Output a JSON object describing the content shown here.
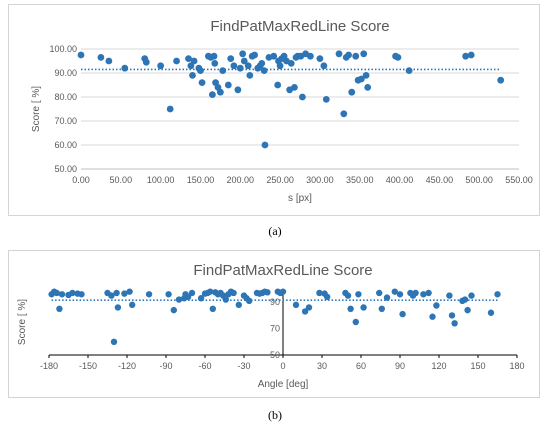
{
  "captions": {
    "a": "(a)",
    "b": "(b)"
  },
  "colors": {
    "series": "#2e75b6",
    "trend": "#2e75b6",
    "axis": "#bfbfbf",
    "grid": "#d9d9d9",
    "text": "#595959"
  },
  "chart_data": [
    {
      "type": "scatter",
      "title": "FindPatMaxRedLine Score",
      "xlabel": "s [px]",
      "ylabel": "Score [ %]",
      "xlim": [
        0,
        550
      ],
      "ylim": [
        50,
        100
      ],
      "xticks": [
        "0.00",
        "50.00",
        "100.00",
        "150.00",
        "200.00",
        "250.00",
        "300.00",
        "350.00",
        "400.00",
        "450.00",
        "500.00",
        "550.00"
      ],
      "yticks": [
        "50.00",
        "60.00",
        "70.00",
        "80.00",
        "90.00",
        "100.00"
      ],
      "grid": true,
      "trendline": 91.5,
      "points": [
        [
          0,
          97.5
        ],
        [
          25,
          96.5
        ],
        [
          35,
          95
        ],
        [
          55,
          92
        ],
        [
          80,
          96
        ],
        [
          82,
          94.5
        ],
        [
          100,
          93
        ],
        [
          112,
          75
        ],
        [
          120,
          95
        ],
        [
          135,
          96
        ],
        [
          138,
          93
        ],
        [
          140,
          89
        ],
        [
          142,
          95
        ],
        [
          148,
          92
        ],
        [
          150,
          91
        ],
        [
          152,
          86
        ],
        [
          160,
          97
        ],
        [
          163,
          96.5
        ],
        [
          165,
          81
        ],
        [
          167,
          97
        ],
        [
          168,
          94
        ],
        [
          169,
          86
        ],
        [
          172,
          84
        ],
        [
          175,
          82
        ],
        [
          178,
          91
        ],
        [
          185,
          85
        ],
        [
          188,
          96
        ],
        [
          192,
          93
        ],
        [
          197,
          83
        ],
        [
          200,
          92
        ],
        [
          203,
          98
        ],
        [
          205,
          95
        ],
        [
          210,
          93
        ],
        [
          212,
          89
        ],
        [
          215,
          97
        ],
        [
          218,
          97.5
        ],
        [
          222,
          92
        ],
        [
          225,
          93
        ],
        [
          227,
          94
        ],
        [
          230,
          91
        ],
        [
          231,
          60
        ],
        [
          236,
          96.5
        ],
        [
          242,
          97
        ],
        [
          247,
          85
        ],
        [
          248,
          95
        ],
        [
          250,
          93
        ],
        [
          252,
          96
        ],
        [
          255,
          97
        ],
        [
          258,
          95
        ],
        [
          262,
          83
        ],
        [
          264,
          94
        ],
        [
          268,
          84
        ],
        [
          270,
          96.5
        ],
        [
          272,
          97
        ],
        [
          276,
          97
        ],
        [
          278,
          80
        ],
        [
          282,
          98
        ],
        [
          288,
          97
        ],
        [
          300,
          96
        ],
        [
          305,
          93
        ],
        [
          308,
          79
        ],
        [
          324,
          98
        ],
        [
          330,
          73
        ],
        [
          333,
          96.5
        ],
        [
          336,
          97.5
        ],
        [
          340,
          82
        ],
        [
          345,
          97
        ],
        [
          348,
          87
        ],
        [
          352,
          87.5
        ],
        [
          355,
          98
        ],
        [
          358,
          89
        ],
        [
          360,
          84
        ],
        [
          395,
          97
        ],
        [
          398,
          96.5
        ],
        [
          412,
          91
        ],
        [
          483,
          97
        ],
        [
          490,
          97.5
        ],
        [
          527,
          87
        ]
      ]
    },
    {
      "type": "scatter",
      "title": "FindPatMaxRedLine Score",
      "xlabel": "Angle [deg]",
      "ylabel": "Score [ %]",
      "xlim": [
        -180,
        180
      ],
      "ylim": [
        50,
        100
      ],
      "xticks": [
        "-180",
        "-150",
        "-120",
        "-90",
        "-60",
        "-30",
        "0",
        "30",
        "60",
        "90",
        "120",
        "150",
        "180"
      ],
      "yticks": [
        "50",
        "70",
        "90"
      ],
      "grid": false,
      "trendline": 91.5,
      "points": [
        [
          -178,
          96
        ],
        [
          -176,
          98
        ],
        [
          -174,
          97
        ],
        [
          -172,
          85
        ],
        [
          -170,
          96
        ],
        [
          -165,
          95.5
        ],
        [
          -162,
          97
        ],
        [
          -158,
          96.5
        ],
        [
          -155,
          96
        ],
        [
          -135,
          97
        ],
        [
          -132,
          95
        ],
        [
          -130,
          60
        ],
        [
          -128,
          97
        ],
        [
          -127,
          86
        ],
        [
          -122,
          96.5
        ],
        [
          -118,
          98
        ],
        [
          -116,
          88
        ],
        [
          -103,
          96
        ],
        [
          -88,
          96
        ],
        [
          -84,
          84
        ],
        [
          -80,
          92
        ],
        [
          -76,
          93
        ],
        [
          -75,
          96
        ],
        [
          -73,
          94
        ],
        [
          -70,
          97
        ],
        [
          -63,
          93
        ],
        [
          -60,
          96.5
        ],
        [
          -58,
          97
        ],
        [
          -56,
          98
        ],
        [
          -54,
          85
        ],
        [
          -52,
          97.5
        ],
        [
          -50,
          96
        ],
        [
          -48,
          97
        ],
        [
          -46,
          95
        ],
        [
          -44,
          92
        ],
        [
          -42,
          96
        ],
        [
          -40,
          98
        ],
        [
          -38,
          97
        ],
        [
          -34,
          88
        ],
        [
          -30,
          95
        ],
        [
          -28,
          93
        ],
        [
          -26,
          91
        ],
        [
          -20,
          97
        ],
        [
          -18,
          96.5
        ],
        [
          -16,
          97
        ],
        [
          -14,
          98
        ],
        [
          -12,
          97.5
        ],
        [
          -4,
          98
        ],
        [
          -2,
          97
        ],
        [
          0,
          98
        ],
        [
          10,
          88
        ],
        [
          17,
          83
        ],
        [
          20,
          86
        ],
        [
          28,
          97
        ],
        [
          32,
          96.5
        ],
        [
          34,
          94
        ],
        [
          48,
          97
        ],
        [
          50,
          95
        ],
        [
          52,
          85
        ],
        [
          56,
          75
        ],
        [
          58,
          96
        ],
        [
          62,
          86
        ],
        [
          74,
          97
        ],
        [
          76,
          85
        ],
        [
          80,
          93.5
        ],
        [
          86,
          98
        ],
        [
          90,
          96
        ],
        [
          92,
          81
        ],
        [
          98,
          97
        ],
        [
          100,
          95
        ],
        [
          102,
          97
        ],
        [
          108,
          96
        ],
        [
          112,
          97
        ],
        [
          115,
          79
        ],
        [
          118,
          87.5
        ],
        [
          128,
          95
        ],
        [
          130,
          80
        ],
        [
          132,
          74
        ],
        [
          138,
          91
        ],
        [
          140,
          92
        ],
        [
          142,
          84
        ],
        [
          145,
          95
        ],
        [
          160,
          82
        ],
        [
          165,
          96
        ]
      ]
    }
  ]
}
